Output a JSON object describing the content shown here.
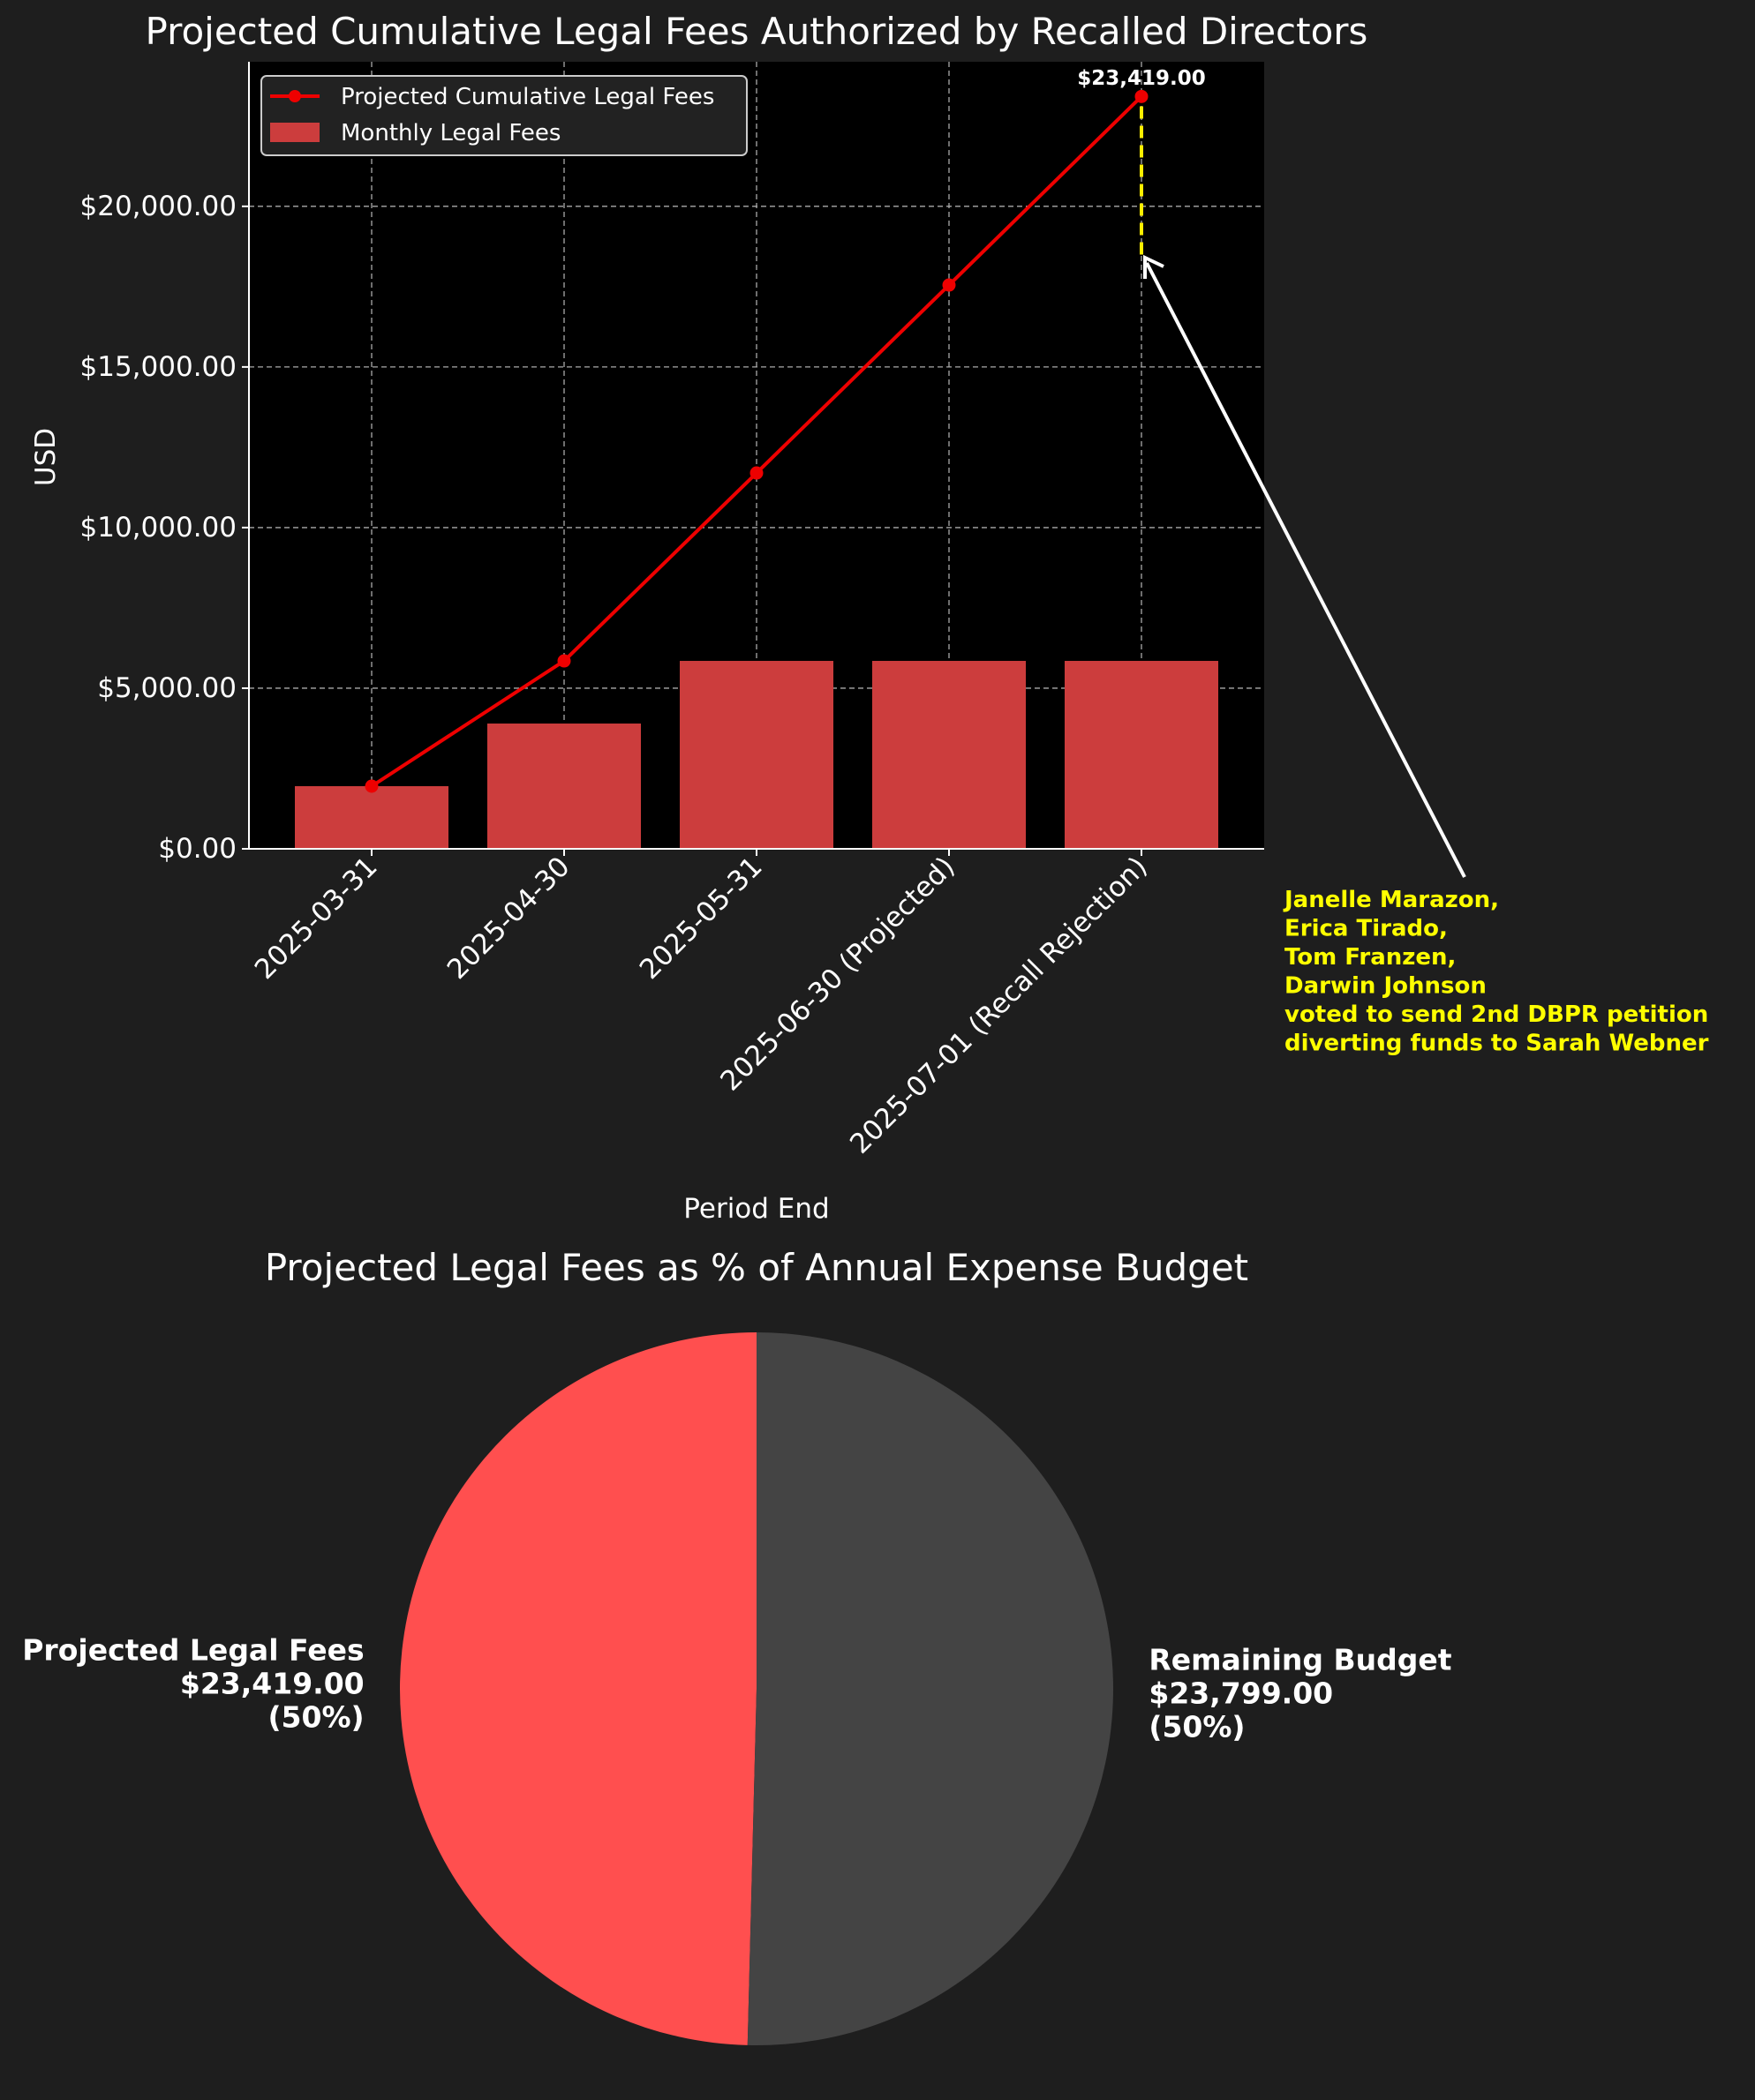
{
  "colors": {
    "background": "#1e1e1e",
    "plot_bg": "#000000",
    "bar": "#cc3d3d",
    "line": "#ee0000",
    "highlight_dash": "#ffee00",
    "annotation_text": "#ffff00",
    "pie_fees": "#ff4f4f",
    "pie_remaining": "#444444",
    "text": "#ffffff"
  },
  "chart_data": [
    {
      "type": "bar",
      "title": "Projected Cumulative Legal Fees Authorized by Recalled Directors",
      "xlabel": "Period End",
      "ylabel": "USD",
      "categories": [
        "2025-03-31",
        "2025-04-30",
        "2025-05-31",
        "2025-06-30 (Projected)",
        "2025-07-01 (Recall Rejection)"
      ],
      "ylim": [
        0,
        24500
      ],
      "yticks": [
        0,
        5000,
        10000,
        15000,
        20000
      ],
      "ytick_labels": [
        "$0.00",
        "$5,000.00",
        "$10,000.00",
        "$15,000.00",
        "$20,000.00"
      ],
      "grid": true,
      "legend_position": "top-left",
      "series": [
        {
          "name": "Projected Cumulative Legal Fees",
          "kind": "line",
          "values": [
            1950,
            5850,
            11700,
            17550,
            23419
          ]
        },
        {
          "name": "Monthly Legal Fees",
          "kind": "bar",
          "values": [
            1950,
            3900,
            5850,
            5850,
            5850
          ]
        }
      ],
      "point_label": "$23,419.00",
      "highlight_range": [
        18500,
        23419
      ],
      "annotation": {
        "lines": [
          "Janelle Marazon,",
          "Erica Tirado,",
          "Tom Franzen,",
          "Darwin Johnson",
          "voted to send 2nd DBPR petition",
          "diverting funds to Sarah Webner"
        ]
      }
    },
    {
      "type": "pie",
      "title": "Projected Legal Fees as % of Annual Expense Budget",
      "slices": [
        {
          "name": "Projected Legal Fees",
          "value": 23419,
          "label_lines": [
            "Projected Legal Fees",
            "$23,419.00",
            "(50%)"
          ]
        },
        {
          "name": "Remaining Budget",
          "value": 23799,
          "label_lines": [
            "Remaining Budget",
            "$23,799.00",
            "(50%)"
          ]
        }
      ]
    }
  ]
}
